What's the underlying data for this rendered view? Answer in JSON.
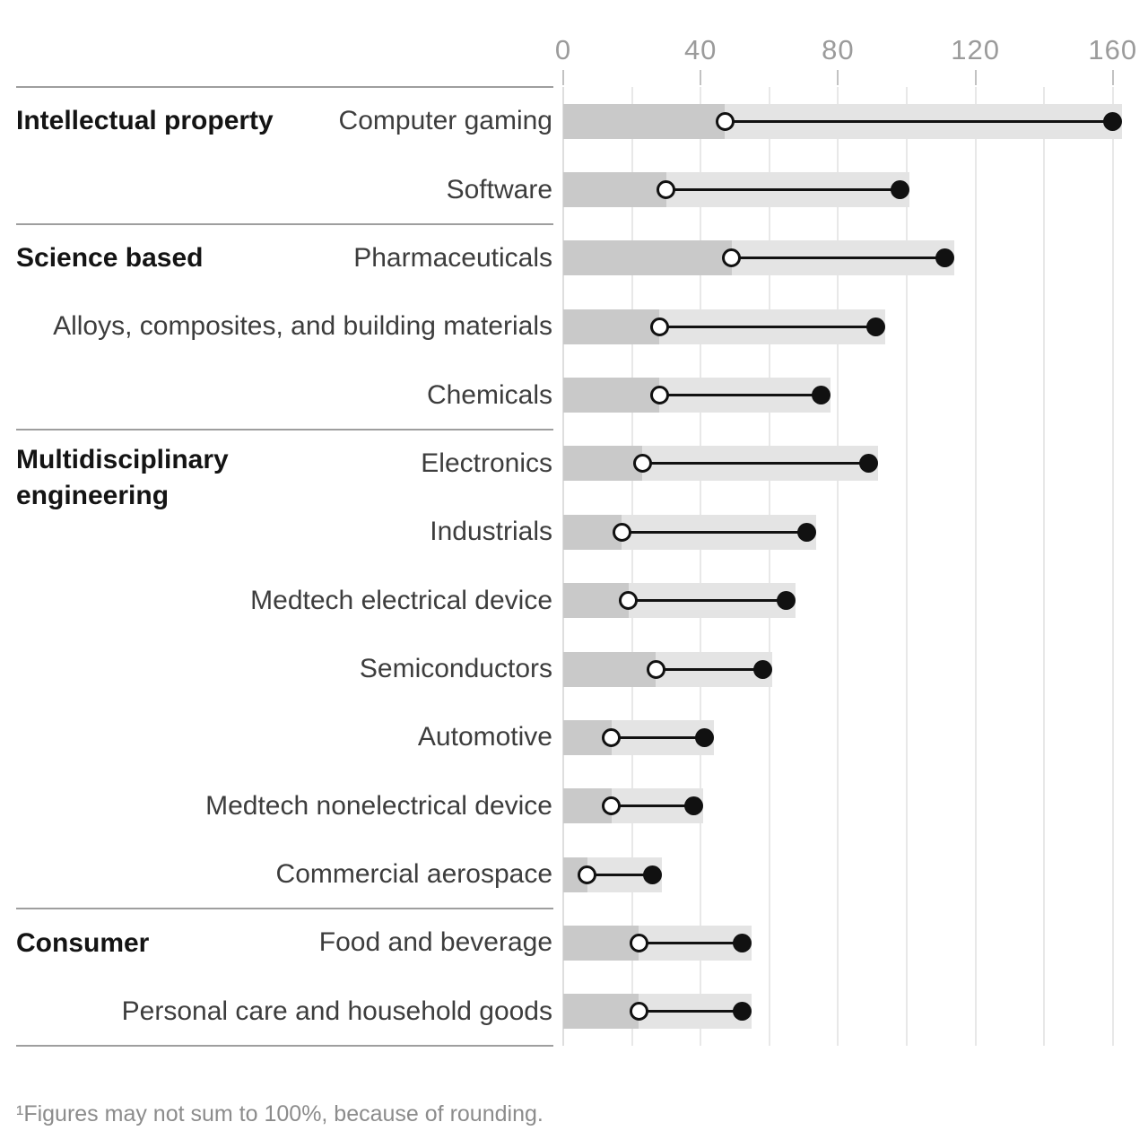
{
  "chart_data": {
    "type": "dumbbell",
    "title": "",
    "axis": {
      "ticks": [
        0,
        40,
        80,
        120,
        160
      ],
      "min": 0,
      "max": 160,
      "gridline_step": 20,
      "grid": true,
      "position": "top"
    },
    "sections": [
      {
        "label": "Intellectual property",
        "rows": [
          {
            "label": "Computer gaming",
            "open": 47,
            "filled": 160
          },
          {
            "label": "Software",
            "open": 30,
            "filled": 98
          }
        ]
      },
      {
        "label": "Science based",
        "rows": [
          {
            "label": "Pharmaceuticals",
            "open": 49,
            "filled": 111
          },
          {
            "label": "Alloys, composites, and building materials",
            "open": 28,
            "filled": 91
          },
          {
            "label": "Chemicals",
            "open": 28,
            "filled": 75
          }
        ]
      },
      {
        "label": "Multidisciplinary engineering",
        "rows": [
          {
            "label": "Electronics",
            "open": 23,
            "filled": 89
          },
          {
            "label": "Industrials",
            "open": 17,
            "filled": 71
          },
          {
            "label": "Medtech electrical device",
            "open": 19,
            "filled": 65
          },
          {
            "label": "Semiconductors",
            "open": 27,
            "filled": 58
          },
          {
            "label": "Automotive",
            "open": 14,
            "filled": 41
          },
          {
            "label": "Medtech nonelectrical device",
            "open": 14,
            "filled": 38
          },
          {
            "label": "Commercial aerospace",
            "open": 7,
            "filled": 26
          }
        ]
      },
      {
        "label": "Consumer",
        "rows": [
          {
            "label": "Food and beverage",
            "open": 22,
            "filled": 52
          },
          {
            "label": "Personal care and household goods",
            "open": 22,
            "filled": 52
          }
        ]
      }
    ],
    "footnote": "¹Figures may not sum to 100%, because of rounding."
  },
  "colors": {
    "bar_dark": "#c9c9c9",
    "bar_light": "#e4e4e4",
    "gridline": "#e8e8e8",
    "axis_label": "#9b9b9b",
    "tick": "#c2c2c2",
    "separator": "#9e9e9e",
    "row_label": "#3d3d3d",
    "section_header": "#141414",
    "dot_fill": "#111111",
    "dot_open_fill": "#ffffff",
    "connector": "#111111",
    "footnote": "#8c8c8c"
  }
}
